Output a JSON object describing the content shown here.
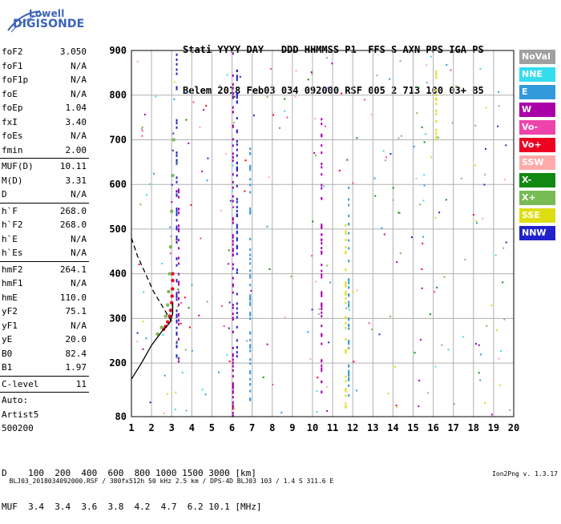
{
  "logo": {
    "line1": "Lowell",
    "line2": "DIGISONDE"
  },
  "header": {
    "line1": "Stati YYYY DAY   DDD HHMMSS P1  FFS S AXN PPS IGA PS",
    "line2": "Belem 2018 Feb03 034 092000 RSF 005 2 713 100 03+ B5"
  },
  "params": [
    {
      "name": "foF2",
      "value": "3.050"
    },
    {
      "name": "foF1",
      "value": "N/A"
    },
    {
      "name": "foF1p",
      "value": "N/A"
    },
    {
      "name": "foE",
      "value": "N/A"
    },
    {
      "name": "foEp",
      "value": "1.04"
    },
    {
      "name": "fxI",
      "value": "3.40"
    },
    {
      "name": "foEs",
      "value": "N/A"
    },
    {
      "name": "fmin",
      "value": "2.00"
    },
    {
      "sep": true
    },
    {
      "name": "MUF(D)",
      "value": "10.11"
    },
    {
      "name": "M(D)",
      "value": "3.31"
    },
    {
      "name": "D",
      "value": "N/A"
    },
    {
      "sep": true
    },
    {
      "name": "h`F",
      "value": "268.0"
    },
    {
      "name": "h`F2",
      "value": "268.0"
    },
    {
      "name": "h`E",
      "value": "N/A"
    },
    {
      "name": "h`Es",
      "value": "N/A"
    },
    {
      "sep": true
    },
    {
      "name": "hmF2",
      "value": "264.1"
    },
    {
      "name": "hmF1",
      "value": "N/A"
    },
    {
      "name": "hmE",
      "value": "110.0"
    },
    {
      "name": "yF2",
      "value": "75.1"
    },
    {
      "name": "yF1",
      "value": "N/A"
    },
    {
      "name": "yE",
      "value": "20.0"
    },
    {
      "name": "B0",
      "value": "82.4"
    },
    {
      "name": "B1",
      "value": "1.97"
    },
    {
      "sep": true
    },
    {
      "name": "C-level",
      "value": "11"
    },
    {
      "sep": true
    },
    {
      "name": "Auto:",
      "value": ""
    },
    {
      "name": "Artist5",
      "value": ""
    },
    {
      "name": "500200",
      "value": ""
    }
  ],
  "legend": [
    {
      "label": "NoVal",
      "color": "#a0a0a0"
    },
    {
      "label": "NNE",
      "color": "#33ddee"
    },
    {
      "label": "E",
      "color": "#3399dd"
    },
    {
      "label": "W",
      "color": "#aa00aa"
    },
    {
      "label": "Vo-",
      "color": "#ee44aa"
    },
    {
      "label": "Vo+",
      "color": "#ee0022"
    },
    {
      "label": "SSW",
      "color": "#ffaaaa"
    },
    {
      "label": "X-",
      "color": "#118811"
    },
    {
      "label": "X+",
      "color": "#77bb55"
    },
    {
      "label": "SSE",
      "color": "#dddd11"
    },
    {
      "label": "NNW",
      "color": "#2222cc"
    }
  ],
  "dmuf": {
    "line1": "D    100  200  400  600  800 1000 1500 3000 [km]",
    "line2": "MUF  3.4  3.4  3.6  3.8  4.2  4.7  6.2 10.1 [MHz]"
  },
  "footer": {
    "left": "BLJ03_2018034092000.RSF / 380fx512h 50 kHz 2.5 km / DPS-4D BLJ03 103 / 1.4 S 311.6 E",
    "right": "Ion2Png v. 1.3.17"
  },
  "chart_data": {
    "type": "scatter",
    "xlabel": "",
    "ylabel": "",
    "xlim": [
      1,
      20
    ],
    "ylim": [
      80,
      900
    ],
    "xticks": [
      1,
      2,
      3,
      4,
      5,
      6,
      7,
      8,
      9,
      10,
      11,
      12,
      13,
      14,
      15,
      16,
      17,
      18,
      19,
      20
    ],
    "yticks": [
      80,
      200,
      300,
      400,
      500,
      600,
      700,
      800,
      900
    ],
    "grid": true,
    "traces": [
      {
        "name": "O-trace",
        "color": "#ee0022",
        "points": [
          [
            2.6,
            276
          ],
          [
            2.7,
            282
          ],
          [
            2.8,
            292
          ],
          [
            2.9,
            305
          ],
          [
            2.95,
            318
          ],
          [
            3.0,
            335
          ],
          [
            3.02,
            350
          ],
          [
            3.04,
            366
          ],
          [
            3.05,
            385
          ],
          [
            3.05,
            400
          ]
        ]
      },
      {
        "name": "X-trace",
        "color": "#77bb55",
        "points": [
          [
            2.3,
            265
          ],
          [
            2.5,
            280
          ],
          [
            2.7,
            305
          ],
          [
            2.8,
            330
          ],
          [
            2.85,
            360
          ],
          [
            2.9,
            400
          ],
          [
            2.95,
            460
          ],
          [
            3.0,
            540
          ],
          [
            3.05,
            620
          ],
          [
            3.1,
            700
          ]
        ]
      },
      {
        "name": "profile",
        "color": "#000000",
        "points": [
          [
            1.0,
            164
          ],
          [
            1.5,
            200
          ],
          [
            2.0,
            240
          ],
          [
            2.5,
            270
          ],
          [
            2.9,
            290
          ],
          [
            3.05,
            310
          ],
          [
            3.05,
            335
          ]
        ]
      },
      {
        "name": "profile-extrapolated",
        "color": "#000000",
        "dashed": true,
        "points": [
          [
            1.0,
            480
          ],
          [
            1.3,
            440
          ],
          [
            1.7,
            400
          ],
          [
            2.1,
            360
          ],
          [
            2.5,
            330
          ],
          [
            2.9,
            300
          ],
          [
            3.05,
            290
          ]
        ]
      }
    ],
    "columns": [
      {
        "x": 3.25,
        "ymin": 180,
        "ymax": 900,
        "color": "#2222cc"
      },
      {
        "x": 3.35,
        "ymin": 200,
        "ymax": 600,
        "color": "#aa00aa"
      },
      {
        "x": 6.05,
        "ymin": 80,
        "ymax": 900,
        "color": "#aa00aa"
      },
      {
        "x": 6.25,
        "ymin": 200,
        "ymax": 860,
        "color": "#2222cc"
      },
      {
        "x": 6.9,
        "ymin": 100,
        "ymax": 700,
        "color": "#3399dd"
      },
      {
        "x": 10.45,
        "ymin": 100,
        "ymax": 760,
        "color": "#aa00aa"
      },
      {
        "x": 11.65,
        "ymin": 100,
        "ymax": 510,
        "color": "#dddd11"
      },
      {
        "x": 11.8,
        "ymin": 120,
        "ymax": 620,
        "color": "#3399dd"
      },
      {
        "x": 16.15,
        "ymin": 700,
        "ymax": 900,
        "color": "#dddd11"
      }
    ]
  }
}
